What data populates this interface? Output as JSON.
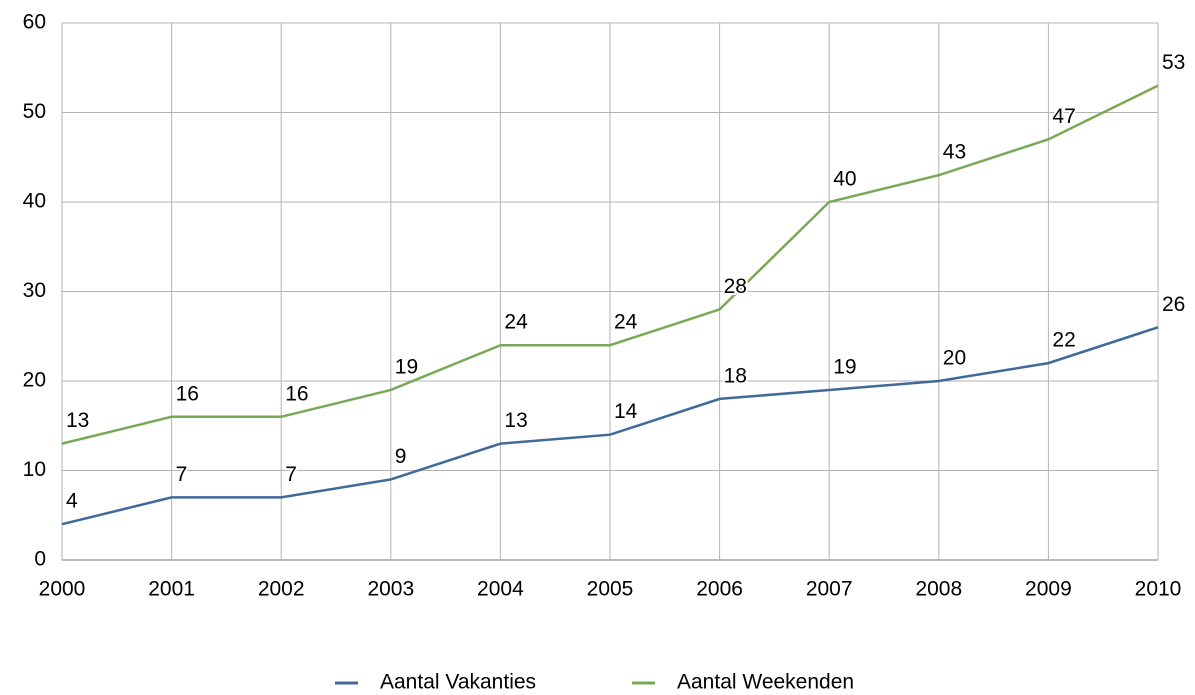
{
  "chart_data": {
    "type": "line",
    "x": [
      2000,
      2001,
      2002,
      2003,
      2004,
      2005,
      2006,
      2007,
      2008,
      2009,
      2010
    ],
    "xlim": [
      2000,
      2010
    ],
    "xticks": [
      2000,
      2001,
      2002,
      2003,
      2004,
      2005,
      2006,
      2007,
      2008,
      2009,
      2010
    ],
    "ylim": [
      0,
      60
    ],
    "yticks": [
      0,
      10,
      20,
      30,
      40,
      50,
      60
    ],
    "grid": true,
    "legend": "bottom",
    "series": [
      {
        "name": "Aantal Vakanties",
        "color": "#41699a",
        "values": [
          4,
          7,
          7,
          9,
          13,
          14,
          18,
          19,
          20,
          22,
          26
        ]
      },
      {
        "name": "Aantal Weekenden",
        "color": "#79a957",
        "values": [
          13,
          16,
          16,
          19,
          24,
          24,
          28,
          40,
          43,
          47,
          53
        ]
      }
    ]
  }
}
